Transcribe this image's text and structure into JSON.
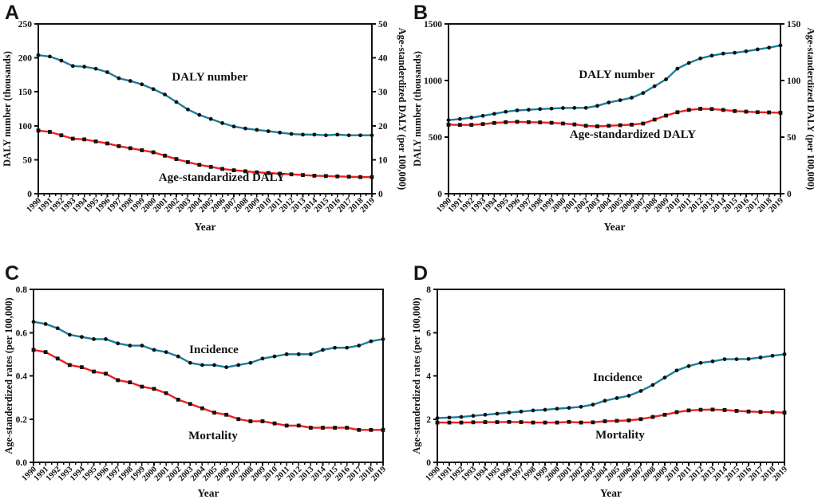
{
  "figure": {
    "background": "#ffffff",
    "axis_color": "#111111",
    "marker_color": "#111111",
    "incidence_color": "#1b7e9c",
    "mortality_color": "#ee2020"
  },
  "chart_data": [
    {
      "panel_label": "A",
      "type": "line",
      "x_label": "Year",
      "x": [
        1990,
        1991,
        1992,
        1993,
        1994,
        1995,
        1996,
        1997,
        1998,
        1999,
        2000,
        2001,
        2002,
        2003,
        2004,
        2005,
        2006,
        2007,
        2008,
        2009,
        2010,
        2011,
        2012,
        2013,
        2014,
        2015,
        2016,
        2017,
        2018,
        2019
      ],
      "axes": {
        "left": {
          "label": "DALY number  (thousands)",
          "range": [
            0,
            250
          ],
          "tick_values": [
            0,
            50,
            100,
            150,
            200,
            250
          ],
          "tick_labels": [
            "0",
            "50",
            "100",
            "150",
            "200",
            "250"
          ]
        },
        "right": {
          "label": "Age-standerdized DALY (per 100,000)",
          "range": [
            0,
            50
          ],
          "tick_values": [
            0,
            10,
            20,
            30,
            40,
            50
          ],
          "tick_labels": [
            "0",
            "10",
            "20",
            "30",
            "40",
            "50"
          ]
        }
      },
      "series": [
        {
          "name": "DALY number",
          "axis": "left",
          "color": "#1b7e9c",
          "marker": "circle",
          "values": [
            204,
            202,
            196,
            188,
            187,
            184,
            179,
            170,
            166,
            161,
            154,
            146,
            135,
            124,
            116,
            110,
            104,
            99,
            96,
            94,
            92,
            90,
            88,
            87,
            87,
            86,
            87,
            86,
            86,
            86
          ]
        },
        {
          "name": "Age-standardized DALY",
          "axis": "right",
          "color": "#ee2020",
          "marker": "square",
          "values": [
            18.6,
            18.2,
            17.2,
            16.2,
            16.0,
            15.4,
            14.8,
            14.0,
            13.4,
            12.8,
            12.2,
            11.2,
            10.2,
            9.3,
            8.5,
            7.9,
            7.3,
            6.9,
            6.6,
            6.3,
            6.1,
            5.9,
            5.7,
            5.5,
            5.3,
            5.2,
            5.1,
            5.0,
            4.9,
            4.9
          ]
        }
      ],
      "annotations": [
        {
          "text": "DALY number",
          "x": 263,
          "y": 101
        },
        {
          "text": "Age-standardized DALY",
          "x": 278,
          "y": 227
        }
      ],
      "layout": {
        "panel": [
          0,
          0,
          510,
          315
        ],
        "plot": [
          48,
          30,
          466,
          243
        ],
        "letter": [
          6,
          4
        ],
        "xtitle_y": 289,
        "left_title_x": 13,
        "right_title_offset": 34,
        "grid": false,
        "legend": "none"
      }
    },
    {
      "panel_label": "B",
      "type": "line",
      "x_label": "Year",
      "x": [
        1990,
        1991,
        1992,
        1993,
        1994,
        1995,
        1996,
        1997,
        1998,
        1999,
        2000,
        2001,
        2002,
        2003,
        2004,
        2005,
        2006,
        2007,
        2008,
        2009,
        2010,
        2011,
        2012,
        2013,
        2014,
        2015,
        2016,
        2017,
        2018,
        2019
      ],
      "axes": {
        "left": {
          "label": "DALY number  (thousands)",
          "range": [
            0,
            1500
          ],
          "tick_values": [
            0,
            500,
            1000,
            1500
          ],
          "tick_labels": [
            "0",
            "500",
            "1000",
            "1500"
          ]
        },
        "right": {
          "label": "Age-standerdized DALY (per 100,000)",
          "range": [
            0,
            150
          ],
          "tick_values": [
            0,
            50,
            100,
            150
          ],
          "tick_labels": [
            "0",
            "50",
            "100",
            "150"
          ]
        }
      },
      "series": [
        {
          "name": "DALY number",
          "axis": "left",
          "color": "#1b7e9c",
          "marker": "circle",
          "values": [
            650,
            660,
            672,
            688,
            706,
            724,
            736,
            742,
            748,
            752,
            757,
            758,
            758,
            776,
            806,
            826,
            848,
            890,
            950,
            1010,
            1105,
            1155,
            1195,
            1220,
            1238,
            1245,
            1258,
            1275,
            1290,
            1310
          ]
        },
        {
          "name": "Age-standardized DALY",
          "axis": "right",
          "color": "#ee2020",
          "marker": "square",
          "values": [
            61,
            60.8,
            60.8,
            61.5,
            62.5,
            63.2,
            63.5,
            63.2,
            63.0,
            62.6,
            62.0,
            61.2,
            60.0,
            59.5,
            60.0,
            60.5,
            61.0,
            62.0,
            65.5,
            69.0,
            72.0,
            74.0,
            75.0,
            74.8,
            74.0,
            73.0,
            72.5,
            72.0,
            71.8,
            71.5
          ]
        }
      ],
      "annotations": [
        {
          "text": "DALY number",
          "x": 263,
          "y": 98
        },
        {
          "text": "Age-standardized DALY",
          "x": 283,
          "y": 173
        }
      ],
      "layout": {
        "panel": [
          510,
          0,
          510,
          315
        ],
        "plot": [
          52,
          30,
          468,
          243
        ],
        "letter": [
          8,
          4
        ],
        "xtitle_y": 289,
        "left_title_x": 17,
        "right_title_offset": 34,
        "grid": false,
        "legend": "none"
      }
    },
    {
      "panel_label": "C",
      "type": "line",
      "x_label": "Year",
      "x": [
        1990,
        1991,
        1992,
        1993,
        1994,
        1995,
        1996,
        1997,
        1998,
        1999,
        2000,
        2001,
        2002,
        2003,
        2004,
        2005,
        2006,
        2007,
        2008,
        2009,
        2010,
        2011,
        2012,
        2013,
        2014,
        2015,
        2016,
        2017,
        2018,
        2019
      ],
      "axes": {
        "left": {
          "label": "Age-standerdized rates (per 100,000)",
          "range": [
            0,
            0.8
          ],
          "tick_values": [
            0,
            0.2,
            0.4,
            0.6,
            0.8
          ],
          "tick_labels": [
            "0.0",
            "0.2",
            "0.4",
            "0.6",
            "0.8"
          ]
        }
      },
      "series": [
        {
          "name": "Incidence",
          "axis": "left",
          "color": "#1b7e9c",
          "marker": "circle",
          "values": [
            0.65,
            0.64,
            0.62,
            0.59,
            0.58,
            0.57,
            0.57,
            0.55,
            0.54,
            0.54,
            0.52,
            0.51,
            0.49,
            0.46,
            0.45,
            0.45,
            0.44,
            0.45,
            0.46,
            0.48,
            0.49,
            0.5,
            0.5,
            0.5,
            0.52,
            0.53,
            0.53,
            0.54,
            0.56,
            0.57
          ]
        },
        {
          "name": "Mortality",
          "axis": "left",
          "color": "#ee2020",
          "marker": "square",
          "values": [
            0.52,
            0.51,
            0.48,
            0.45,
            0.44,
            0.42,
            0.41,
            0.38,
            0.37,
            0.35,
            0.34,
            0.32,
            0.29,
            0.27,
            0.25,
            0.23,
            0.22,
            0.2,
            0.19,
            0.19,
            0.18,
            0.17,
            0.17,
            0.16,
            0.16,
            0.16,
            0.16,
            0.15,
            0.15,
            0.15
          ]
        }
      ],
      "annotations": [
        {
          "text": "Incidence",
          "x": 268,
          "y": 128
        },
        {
          "text": "Mortality",
          "x": 267,
          "y": 236
        }
      ],
      "layout": {
        "panel": [
          0,
          315,
          510,
          316
        ],
        "plot": [
          42,
          48,
          480,
          265
        ],
        "letter": [
          6,
          16
        ],
        "xtitle_y": 308,
        "left_title_x": 15,
        "right_title_offset": 0,
        "grid": false,
        "legend": "none"
      }
    },
    {
      "panel_label": "D",
      "type": "line",
      "x_label": "Year",
      "x": [
        1990,
        1991,
        1992,
        1993,
        1994,
        1995,
        1996,
        1997,
        1998,
        1999,
        2000,
        2001,
        2002,
        2003,
        2004,
        2005,
        2006,
        2007,
        2008,
        2009,
        2010,
        2011,
        2012,
        2013,
        2014,
        2015,
        2016,
        2017,
        2018,
        2019
      ],
      "axes": {
        "left": {
          "label": "Age-standerdized rates (per 100,000)",
          "range": [
            0,
            8
          ],
          "tick_values": [
            0,
            2,
            4,
            6,
            8
          ],
          "tick_labels": [
            "0",
            "2",
            "4",
            "6",
            "8"
          ]
        }
      },
      "series": [
        {
          "name": "Incidence",
          "axis": "left",
          "color": "#1b7e9c",
          "marker": "circle",
          "values": [
            2.05,
            2.07,
            2.1,
            2.15,
            2.2,
            2.25,
            2.3,
            2.35,
            2.4,
            2.43,
            2.48,
            2.52,
            2.57,
            2.67,
            2.85,
            2.97,
            3.08,
            3.3,
            3.58,
            3.92,
            4.25,
            4.45,
            4.6,
            4.67,
            4.77,
            4.77,
            4.78,
            4.85,
            4.93,
            5.0
          ]
        },
        {
          "name": "Mortality",
          "axis": "left",
          "color": "#ee2020",
          "marker": "square",
          "values": [
            1.84,
            1.84,
            1.84,
            1.85,
            1.86,
            1.86,
            1.87,
            1.86,
            1.84,
            1.84,
            1.84,
            1.87,
            1.84,
            1.85,
            1.9,
            1.92,
            1.94,
            2.0,
            2.1,
            2.2,
            2.32,
            2.4,
            2.43,
            2.44,
            2.42,
            2.38,
            2.35,
            2.33,
            2.32,
            2.3
          ]
        }
      ],
      "annotations": [
        {
          "text": "Incidence",
          "x": 264,
          "y": 163
        },
        {
          "text": "Mortality",
          "x": 267,
          "y": 235
        }
      ],
      "layout": {
        "panel": [
          510,
          315,
          510,
          316
        ],
        "plot": [
          38,
          48,
          473,
          265
        ],
        "letter": [
          8,
          16
        ],
        "xtitle_y": 308,
        "left_title_x": 16,
        "right_title_offset": 0,
        "grid": false,
        "legend": "none"
      }
    }
  ]
}
